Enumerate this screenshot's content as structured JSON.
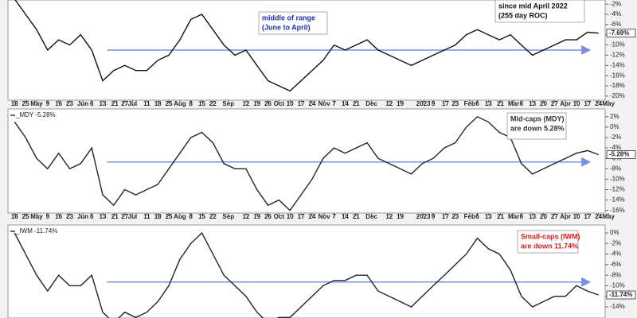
{
  "chart_data": [
    {
      "type": "line",
      "xlim": [
        -0.6,
        53.6
      ],
      "xticks": [
        {
          "value": 0,
          "label": "18"
        },
        {
          "value": 1,
          "label": "25"
        },
        {
          "value": 2,
          "label": "May"
        },
        {
          "value": 3,
          "label": "9"
        },
        {
          "value": 4,
          "label": "16"
        },
        {
          "value": 5,
          "label": "23"
        },
        {
          "value": 6.2,
          "label": "Jun"
        },
        {
          "value": 7,
          "label": "6"
        },
        {
          "value": 8,
          "label": "13"
        },
        {
          "value": 9.1,
          "label": "21"
        },
        {
          "value": 10,
          "label": "27"
        },
        {
          "value": 10.7,
          "label": "Jul"
        },
        {
          "value": 12,
          "label": "11"
        },
        {
          "value": 13,
          "label": "18"
        },
        {
          "value": 14,
          "label": "25"
        },
        {
          "value": 15,
          "label": "Aug"
        },
        {
          "value": 16,
          "label": "8"
        },
        {
          "value": 17,
          "label": "15"
        },
        {
          "value": 18,
          "label": "22"
        },
        {
          "value": 19.4,
          "label": "Sep"
        },
        {
          "value": 21,
          "label": "12"
        },
        {
          "value": 22,
          "label": "19"
        },
        {
          "value": 23,
          "label": "26"
        },
        {
          "value": 24,
          "label": "Oct"
        },
        {
          "value": 25,
          "label": "10"
        },
        {
          "value": 26,
          "label": "17"
        },
        {
          "value": 27,
          "label": "24"
        },
        {
          "value": 28.1,
          "label": "Nov"
        },
        {
          "value": 29,
          "label": "7"
        },
        {
          "value": 30,
          "label": "14"
        },
        {
          "value": 31,
          "label": "21"
        },
        {
          "value": 32.4,
          "label": "Dec"
        },
        {
          "value": 34,
          "label": "12"
        },
        {
          "value": 35,
          "label": "19"
        },
        {
          "value": 37.1,
          "label": "2023"
        },
        {
          "value": 38,
          "label": "9"
        },
        {
          "value": 39.1,
          "label": "17"
        },
        {
          "value": 40,
          "label": "23"
        },
        {
          "value": 41.3,
          "label": "Feb"
        },
        {
          "value": 42,
          "label": "6"
        },
        {
          "value": 43,
          "label": "13"
        },
        {
          "value": 44.1,
          "label": "21"
        },
        {
          "value": 45.3,
          "label": "Mar"
        },
        {
          "value": 46,
          "label": "6"
        },
        {
          "value": 47,
          "label": "13"
        },
        {
          "value": 48,
          "label": "20"
        },
        {
          "value": 49,
          "label": "27"
        },
        {
          "value": 50,
          "label": "Apr"
        },
        {
          "value": 51,
          "label": "10"
        },
        {
          "value": 52,
          "label": "17"
        },
        {
          "value": 53,
          "label": "24"
        },
        {
          "value": 53.9,
          "label": "May"
        }
      ],
      "ylim": [
        -20.8,
        -1.2
      ],
      "yticks": [
        {
          "value": -2,
          "label": "-2%"
        },
        {
          "value": -4,
          "label": "-4%"
        },
        {
          "value": -6,
          "label": "-6%"
        },
        {
          "value": -8,
          "label": "-8%"
        },
        {
          "value": -10,
          "label": "-10%"
        },
        {
          "value": -12,
          "label": "-12%"
        },
        {
          "value": -14,
          "label": "-14%"
        },
        {
          "value": -16,
          "label": "-16%"
        },
        {
          "value": -18,
          "label": "-18%"
        },
        {
          "value": -20,
          "label": "-20%"
        }
      ],
      "series": [
        {
          "color": "#111111",
          "values": [
            -1,
            -4,
            -7,
            -11,
            -9,
            -10,
            -8,
            -11,
            -17,
            -15,
            -14,
            -15,
            -15,
            -13,
            -12,
            -9,
            -5,
            -4,
            -7,
            -10,
            -12,
            -11,
            -14,
            -17,
            -18,
            -19,
            -17,
            -15,
            -13,
            -10,
            -11,
            -10,
            -9,
            -11,
            -12,
            -13,
            -14,
            -13,
            -12,
            -11,
            -10,
            -8,
            -7,
            -8,
            -9,
            -8,
            -10,
            -12,
            -11,
            -10,
            -9,
            -9,
            -7.5,
            -7.69
          ],
          "value_labels": [
            null,
            null,
            null,
            null,
            null,
            null,
            null,
            null,
            null,
            null,
            null,
            null,
            null,
            null,
            null,
            null,
            null,
            null,
            null,
            null,
            null,
            null,
            null,
            null,
            null,
            null,
            null,
            null,
            null,
            null,
            null,
            null,
            null,
            null,
            null,
            null,
            null,
            null,
            null,
            null,
            null,
            null,
            null,
            null,
            null,
            null,
            null,
            null,
            null,
            null,
            null,
            null,
            null,
            "-7.69%"
          ]
        }
      ],
      "midline": {
        "value": -11,
        "from": 8.4,
        "to": 52.2,
        "color": "#7b8fe0"
      },
      "annotations": [
        {
          "lines": [
            "since mid April 2022",
            "(255 day ROC)"
          ],
          "color": "#111111"
        },
        {
          "lines": [
            "middle of range",
            "(June to April)"
          ],
          "color": "#1f2fb8"
        }
      ]
    },
    {
      "type": "line",
      "xlim": [
        -0.6,
        53.6
      ],
      "xticks": [
        {
          "value": 0,
          "label": "18"
        },
        {
          "value": 1,
          "label": "25"
        },
        {
          "value": 2,
          "label": "May"
        },
        {
          "value": 3,
          "label": "9"
        },
        {
          "value": 4,
          "label": "16"
        },
        {
          "value": 5,
          "label": "23"
        },
        {
          "value": 6.2,
          "label": "Jun"
        },
        {
          "value": 7,
          "label": "6"
        },
        {
          "value": 8,
          "label": "13"
        },
        {
          "value": 9.1,
          "label": "21"
        },
        {
          "value": 10,
          "label": "27"
        },
        {
          "value": 10.7,
          "label": "Jul"
        },
        {
          "value": 12,
          "label": "11"
        },
        {
          "value": 13,
          "label": "18"
        },
        {
          "value": 14,
          "label": "25"
        },
        {
          "value": 15,
          "label": "Aug"
        },
        {
          "value": 16,
          "label": "8"
        },
        {
          "value": 17,
          "label": "15"
        },
        {
          "value": 18,
          "label": "22"
        },
        {
          "value": 19.4,
          "label": "Sep"
        },
        {
          "value": 21,
          "label": "12"
        },
        {
          "value": 22,
          "label": "19"
        },
        {
          "value": 23,
          "label": "26"
        },
        {
          "value": 24,
          "label": "Oct"
        },
        {
          "value": 25,
          "label": "10"
        },
        {
          "value": 26,
          "label": "17"
        },
        {
          "value": 27,
          "label": "24"
        },
        {
          "value": 28.1,
          "label": "Nov"
        },
        {
          "value": 29,
          "label": "7"
        },
        {
          "value": 30,
          "label": "14"
        },
        {
          "value": 31,
          "label": "21"
        },
        {
          "value": 32.4,
          "label": "Dec"
        },
        {
          "value": 34,
          "label": "12"
        },
        {
          "value": 35,
          "label": "19"
        },
        {
          "value": 37.1,
          "label": "2023"
        },
        {
          "value": 38,
          "label": "9"
        },
        {
          "value": 39.1,
          "label": "17"
        },
        {
          "value": 40,
          "label": "23"
        },
        {
          "value": 41.3,
          "label": "Feb"
        },
        {
          "value": 42,
          "label": "6"
        },
        {
          "value": 43,
          "label": "13"
        },
        {
          "value": 44.1,
          "label": "21"
        },
        {
          "value": 45.3,
          "label": "Mar"
        },
        {
          "value": 46,
          "label": "6"
        },
        {
          "value": 47,
          "label": "13"
        },
        {
          "value": 48,
          "label": "20"
        },
        {
          "value": 49,
          "label": "27"
        },
        {
          "value": 50,
          "label": "Apr"
        },
        {
          "value": 51,
          "label": "10"
        },
        {
          "value": 52,
          "label": "17"
        },
        {
          "value": 53,
          "label": "24"
        },
        {
          "value": 53.9,
          "label": "May"
        }
      ],
      "ylim": [
        -16.5,
        3.5
      ],
      "yticks": [
        {
          "value": 2,
          "label": "2%"
        },
        {
          "value": 0,
          "label": "0%"
        },
        {
          "value": -2,
          "label": "-2%"
        },
        {
          "value": -4,
          "label": "-4%"
        },
        {
          "value": -6,
          "label": "-6%"
        },
        {
          "value": -8,
          "label": "-8%"
        },
        {
          "value": -10,
          "label": "-10%"
        },
        {
          "value": -12,
          "label": "-12%"
        },
        {
          "value": -14,
          "label": "-14%"
        },
        {
          "value": -16,
          "label": "-16%"
        }
      ],
      "series": [
        {
          "name": "_MDY -5.28%",
          "color": "#1c2433",
          "values": [
            1,
            -2,
            -6,
            -8,
            -5,
            -8,
            -7,
            -4,
            -13,
            -15,
            -12,
            -13,
            -12,
            -11,
            -8,
            -5,
            -2,
            -1,
            -3,
            -7,
            -8,
            -8,
            -12,
            -15,
            -14,
            -16,
            -13,
            -10,
            -6,
            -4,
            -5,
            -4,
            -3,
            -6,
            -7,
            -8,
            -9,
            -7,
            -6,
            -4,
            -3,
            0,
            2,
            1,
            -1,
            -2,
            -7,
            -9,
            -8,
            -7,
            -6,
            -5,
            -4.5,
            -5.28
          ],
          "value_labels": [
            null,
            null,
            null,
            null,
            null,
            null,
            null,
            null,
            null,
            null,
            null,
            null,
            null,
            null,
            null,
            null,
            null,
            null,
            null,
            null,
            null,
            null,
            null,
            null,
            null,
            null,
            null,
            null,
            null,
            null,
            null,
            null,
            null,
            null,
            null,
            null,
            null,
            null,
            null,
            null,
            null,
            null,
            null,
            null,
            null,
            null,
            null,
            null,
            null,
            null,
            null,
            null,
            null,
            "-5.28%"
          ]
        }
      ],
      "midline": {
        "value": -6.7,
        "from": 8.4,
        "to": 52.2,
        "color": "#7b8fe0"
      },
      "annotations": [
        {
          "lines": [
            "Mid-caps (MDY)",
            "are down 5.28%"
          ],
          "color": "#333333"
        }
      ]
    },
    {
      "type": "line",
      "xlim": [
        -0.6,
        53.6
      ],
      "ylim": [
        -16.1,
        1.5
      ],
      "yticks": [
        {
          "value": 0,
          "label": "0%"
        },
        {
          "value": -2,
          "label": "-2%"
        },
        {
          "value": -4,
          "label": "-4%"
        },
        {
          "value": -6,
          "label": "-6%"
        },
        {
          "value": -8,
          "label": "-8%"
        },
        {
          "value": -10,
          "label": "-10%"
        },
        {
          "value": -12,
          "label": "-12%"
        },
        {
          "value": -14,
          "label": "-14%"
        }
      ],
      "series": [
        {
          "name": "_IWM -11.74%",
          "color": "#1c2433",
          "values": [
            0,
            -4,
            -8,
            -11,
            -8,
            -10,
            -10,
            -8,
            -15,
            -17,
            -15,
            -16,
            -15,
            -13,
            -10,
            -5,
            -2,
            0,
            -4,
            -8,
            -10,
            -12,
            -15,
            -17,
            -16,
            -16,
            -14,
            -12,
            -10,
            -9,
            -9,
            -8,
            -8,
            -11,
            -12,
            -13,
            -14,
            -12,
            -10,
            -8,
            -6,
            -4,
            -1,
            -3,
            -4,
            -7,
            -12,
            -14,
            -13,
            -12,
            -12,
            -10,
            -11,
            -11.74
          ],
          "value_labels": [
            null,
            null,
            null,
            null,
            null,
            null,
            null,
            null,
            null,
            null,
            null,
            null,
            null,
            null,
            null,
            null,
            null,
            null,
            null,
            null,
            null,
            null,
            null,
            null,
            null,
            null,
            null,
            null,
            null,
            null,
            null,
            null,
            null,
            null,
            null,
            null,
            null,
            null,
            null,
            null,
            null,
            null,
            null,
            null,
            null,
            null,
            null,
            null,
            null,
            null,
            null,
            null,
            null,
            "-11.74%"
          ]
        }
      ],
      "midline": {
        "value": -9.3,
        "from": 8.4,
        "to": 52.2,
        "color": "#7b8fe0"
      },
      "annotations": [
        {
          "lines": [
            "Small-caps (IWM)",
            "are down 11.74%"
          ],
          "color": "#d42020"
        }
      ]
    }
  ]
}
